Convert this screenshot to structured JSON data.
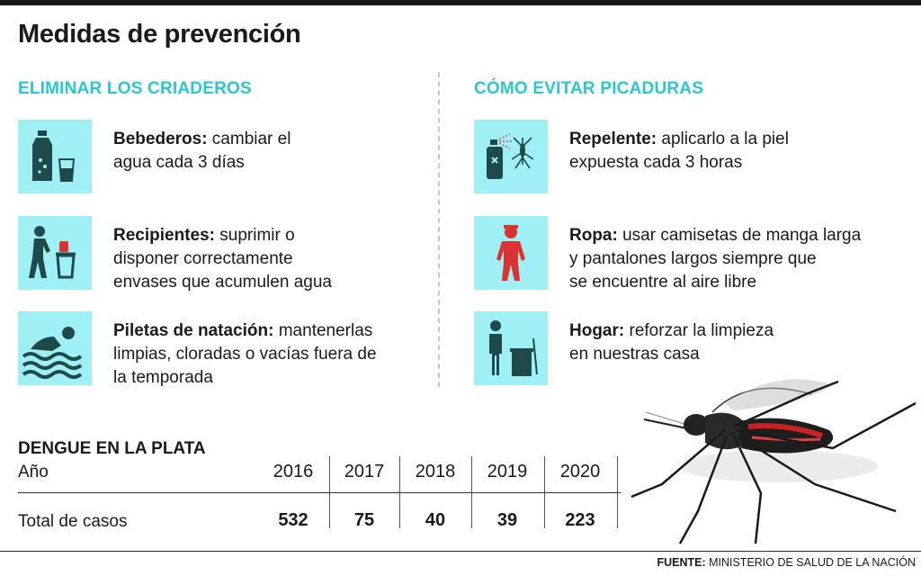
{
  "title": "Medidas de prevención",
  "left": {
    "heading": "ELIMINAR LOS CRIADEROS",
    "items": [
      {
        "icon": "bottle-glass-icon",
        "label": "Bebederos:",
        "line1": " cambiar el",
        "line2": "agua cada 3 días",
        "line3": ""
      },
      {
        "icon": "person-trash-icon",
        "label": "Recipientes:",
        "line1": " suprimir o",
        "line2": "disponer correctamente",
        "line3": "envases que acumulen agua"
      },
      {
        "icon": "swimmer-icon",
        "label": "Piletas de natación:",
        "line1": " mantenerlas",
        "line2": "limpias, cloradas o vacías fuera de",
        "line3": "la temporada"
      }
    ]
  },
  "right": {
    "heading": "CÓMO EVITAR PICADURAS",
    "items": [
      {
        "icon": "spray-mosquito-icon",
        "label": "Repelente:",
        "line1": " aplicarlo a la piel",
        "line2": "expuesta cada 3 horas",
        "line3": ""
      },
      {
        "icon": "person-clothing-icon",
        "label": "Ropa:",
        "line1": " usar camisetas de manga larga",
        "line2": "y pantalones largos siempre que",
        "line3": "se encuentre al aire libre"
      },
      {
        "icon": "person-cleaning-icon",
        "label": "Hogar:",
        "line1": " reforzar la limpieza",
        "line2": "en nuestras casa",
        "line3": ""
      }
    ]
  },
  "stats": {
    "title": "DENGUE EN LA PLATA",
    "row1_label": "Año",
    "row2_label": "Total de casos",
    "years": [
      "2016",
      "2017",
      "2018",
      "2019",
      "2020"
    ],
    "cases": [
      "532",
      "75",
      "40",
      "39",
      "223"
    ]
  },
  "footer": {
    "label": "FUENTE:",
    "source": " MINISTERIO DE SALUD DE LA NACIÓN"
  },
  "colors": {
    "accent": "#2cc5d8",
    "icon_bg": "#9ff0f5",
    "icon_dark": "#1f4a4a",
    "icon_red": "#d93333"
  }
}
